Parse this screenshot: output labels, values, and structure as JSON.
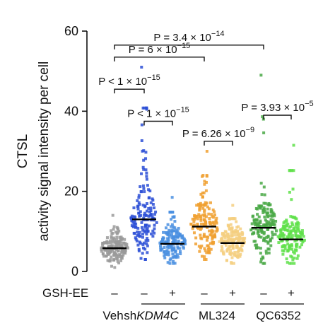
{
  "chart_data": {
    "type": "scatter",
    "subtype": "dot-strip with mean bar",
    "ylabel_line1": "CTSL",
    "ylabel_line2": "activity signal intensity per cell",
    "ylim": [
      0,
      60
    ],
    "yticks": [
      0,
      20,
      40,
      60
    ],
    "grid": false,
    "gsh_label": "GSH-EE",
    "groups": [
      {
        "id": "veh",
        "gsh": "–",
        "mean": 5.8,
        "min": 1,
        "max": 14,
        "color": "#9a9a9a",
        "n": 160
      },
      {
        "id": "kdm_minus",
        "gsh": "–",
        "mean": 13.0,
        "min": 3,
        "max": 51,
        "color": "#2b4fd6",
        "n": 150
      },
      {
        "id": "kdm_plus",
        "gsh": "+",
        "mean": 6.9,
        "min": 2,
        "max": 18.5,
        "color": "#4a8fe0",
        "n": 150
      },
      {
        "id": "ml_minus",
        "gsh": "–",
        "mean": 11.2,
        "min": 3,
        "max": 30,
        "color": "#f0a030",
        "n": 150
      },
      {
        "id": "ml_plus",
        "gsh": "+",
        "mean": 7.1,
        "min": 2,
        "max": 16.5,
        "color": "#f5cf80",
        "n": 150
      },
      {
        "id": "qc_minus",
        "gsh": "–",
        "mean": 10.9,
        "min": 2,
        "max": 49,
        "color": "#49a845",
        "n": 150
      },
      {
        "id": "qc_plus",
        "gsh": "+",
        "mean": 8.0,
        "min": 2,
        "max": 31.5,
        "color": "#5fe04a",
        "n": 150
      }
    ],
    "category_labels": [
      {
        "id": "veh",
        "pre": "Veh",
        "italic": "",
        "post": ""
      },
      {
        "id": "shkdm",
        "pre": "sh",
        "italic": "KDM4C",
        "post": ""
      },
      {
        "id": "ml324",
        "pre": "ML324",
        "italic": "",
        "post": ""
      },
      {
        "id": "qc6352",
        "pre": "QC6352",
        "italic": "",
        "post": ""
      }
    ],
    "comparisons": [
      {
        "from": "veh",
        "to": "qc_minus",
        "y": 56.5,
        "label": "P = 3.4 × 10",
        "exp": "−14"
      },
      {
        "from": "veh",
        "to": "ml_minus",
        "y": 53.5,
        "label": "P = 6 × 10",
        "exp": "−15"
      },
      {
        "from": "veh",
        "to": "kdm_minus",
        "y": 45.5,
        "label": "P < 1 × 10",
        "exp": "−15"
      },
      {
        "from": "kdm_minus",
        "to": "kdm_plus",
        "y": 37.5,
        "label": "P < 1 × 10",
        "exp": "−15"
      },
      {
        "from": "ml_minus",
        "to": "ml_plus",
        "y": 32.5,
        "label": "P = 6.26 × 10",
        "exp": "−9"
      },
      {
        "from": "qc_minus",
        "to": "qc_plus",
        "y": 39.0,
        "label": "P = 3.93 × 10",
        "exp": "−5"
      }
    ]
  }
}
